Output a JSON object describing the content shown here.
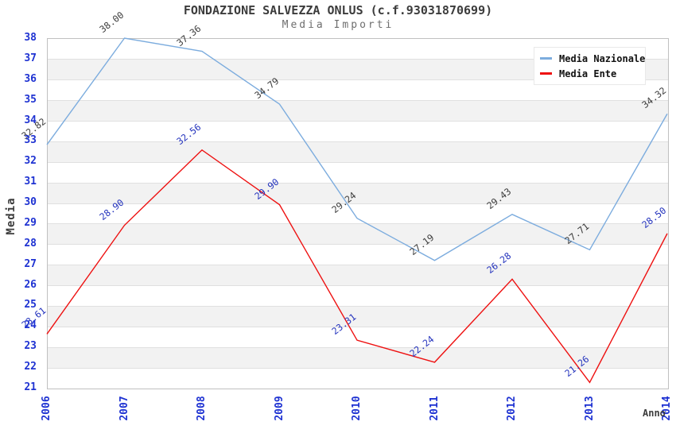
{
  "header": {
    "title": "FONDAZIONE SALVEZZA ONLUS (c.f.93031870699)",
    "subtitle": "Media Importi"
  },
  "chart_data": {
    "type": "line",
    "title": "FONDAZIONE SALVEZZA ONLUS (c.f.93031870699)",
    "subtitle": "Media Importi",
    "xlabel": "Anno",
    "ylabel": "Media",
    "categories": [
      "2006",
      "2007",
      "2008",
      "2009",
      "2010",
      "2011",
      "2012",
      "2013",
      "2014"
    ],
    "series": [
      {
        "name": "Media Nazionale",
        "color": "#7cacde",
        "label_color": "#3d3d3d",
        "values": [
          32.82,
          38.0,
          37.36,
          34.79,
          29.24,
          27.19,
          29.43,
          27.71,
          34.32
        ]
      },
      {
        "name": "Media Ente",
        "color": "#ee1111",
        "label_color": "#2433bd",
        "values": [
          23.61,
          28.9,
          32.56,
          29.9,
          23.31,
          22.24,
          26.28,
          21.26,
          28.5
        ]
      }
    ],
    "ylim": [
      21,
      38
    ],
    "y_tick_step": 1,
    "grid": true,
    "legend_position": "top-right",
    "band_colors": [
      "#ffffff",
      "#f2f2f2"
    ],
    "axis_tick_color": "#1e32d2",
    "value_label_decimals": 2
  }
}
